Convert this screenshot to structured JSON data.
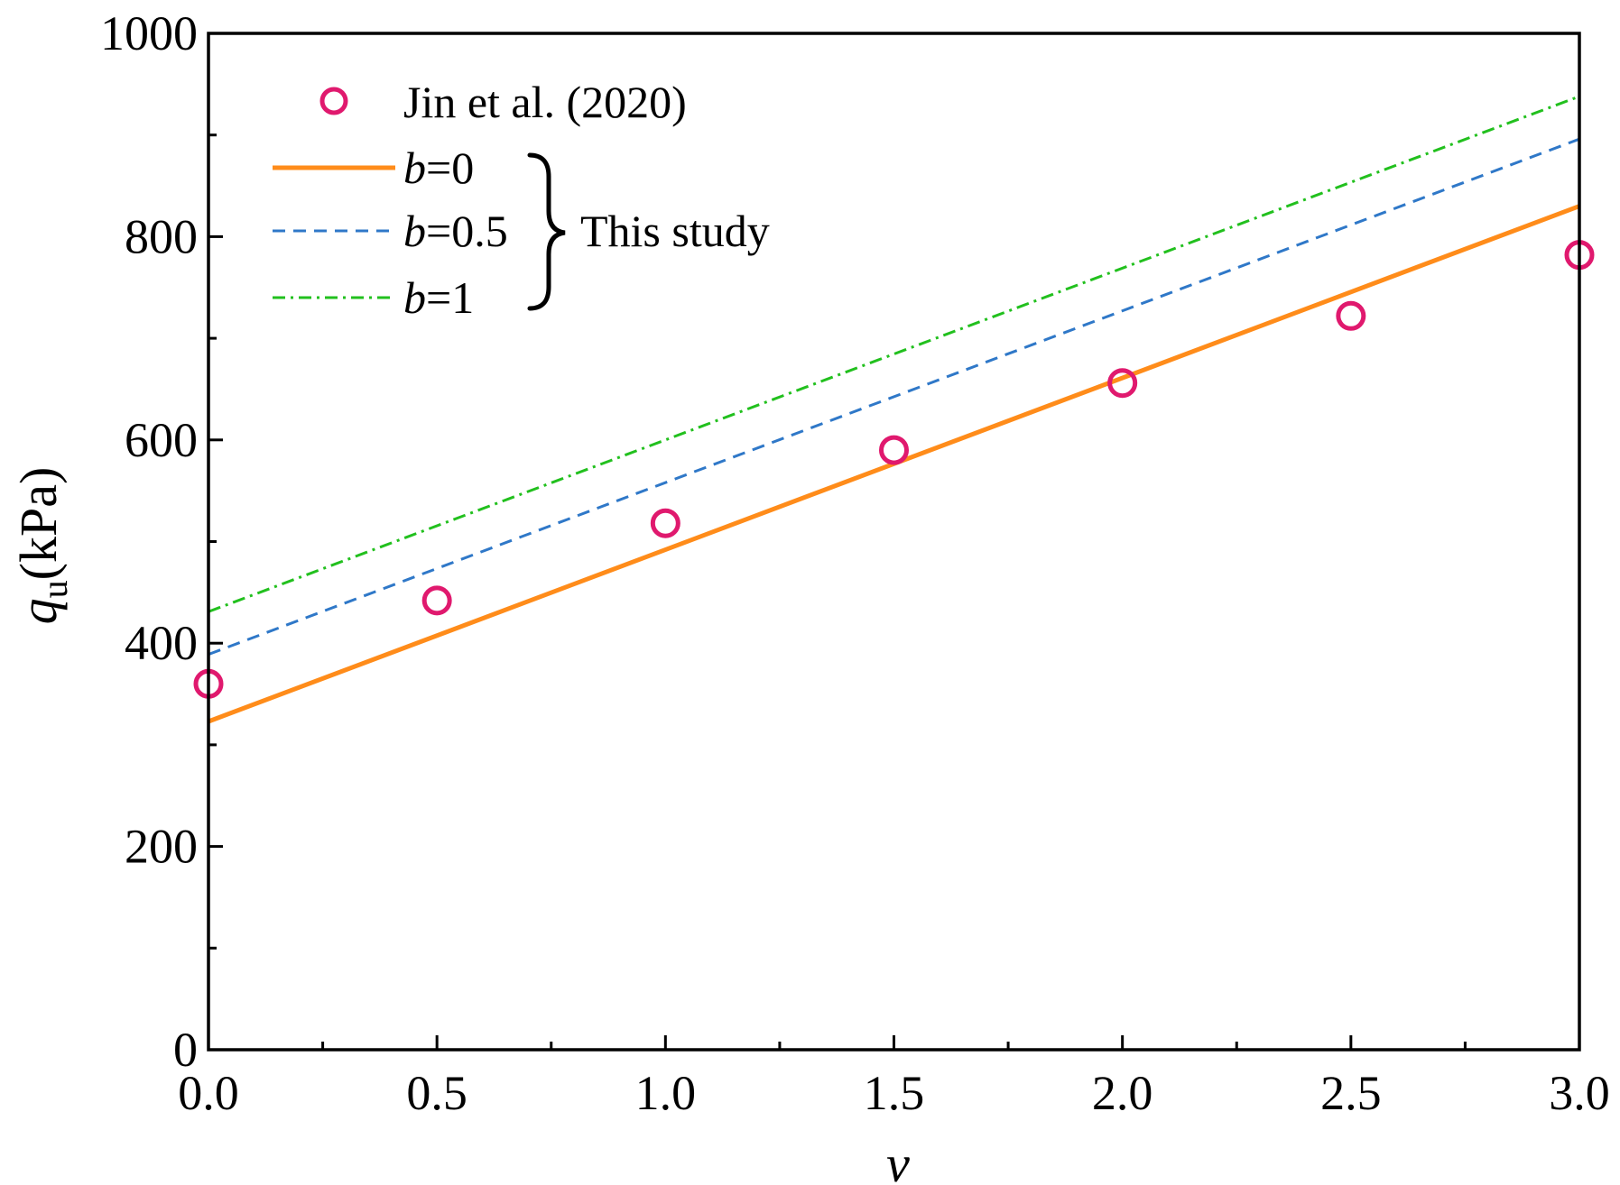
{
  "chart_data": {
    "type": "line",
    "title": "",
    "xlabel": "v",
    "ylabel_symbol": "q",
    "ylabel_subscript": "u",
    "ylabel_unit": "(kPa)",
    "xlim": [
      0,
      3
    ],
    "ylim": [
      0,
      1000
    ],
    "x_ticks": [
      0,
      0.5,
      1,
      1.5,
      2,
      2.5,
      3
    ],
    "x_tick_labels": [
      "0.0",
      "0.5",
      "1.0",
      "1.5",
      "2.0",
      "2.5",
      "3.0"
    ],
    "x_minor_ticks": [
      0.25,
      0.75,
      1.25,
      1.75,
      2.25,
      2.75
    ],
    "y_ticks": [
      0,
      200,
      400,
      600,
      800,
      1000
    ],
    "y_tick_labels": [
      "0",
      "200",
      "400",
      "600",
      "800",
      "1000"
    ],
    "y_minor_ticks": [
      100,
      300,
      500,
      700,
      900
    ],
    "grid": false,
    "legend_position": "top-left",
    "series": [
      {
        "name": "Jin et al. (2020)",
        "kind": "scatter",
        "marker": "open-circle",
        "color": "#e0196e",
        "x": [
          0,
          0.5,
          1,
          1.5,
          2,
          2.5,
          3
        ],
        "y": [
          360,
          442,
          518,
          590,
          656,
          722,
          782
        ]
      },
      {
        "name": "b=0",
        "legend_var": "b",
        "legend_value": "=0",
        "kind": "line",
        "style": "solid",
        "color": "#ff8c1a",
        "x": [
          0,
          3
        ],
        "y": [
          323,
          830
        ]
      },
      {
        "name": "b=0.5",
        "legend_var": "b",
        "legend_value": "=0.5",
        "kind": "line",
        "style": "dashed",
        "color": "#2f78c8",
        "x": [
          0,
          3
        ],
        "y": [
          389,
          896
        ]
      },
      {
        "name": "b=1",
        "legend_var": "b",
        "legend_value": "=1",
        "kind": "line",
        "style": "dash-dot",
        "color": "#22c01e",
        "x": [
          0,
          3
        ],
        "y": [
          431,
          938
        ]
      }
    ],
    "annotation": "This study"
  }
}
